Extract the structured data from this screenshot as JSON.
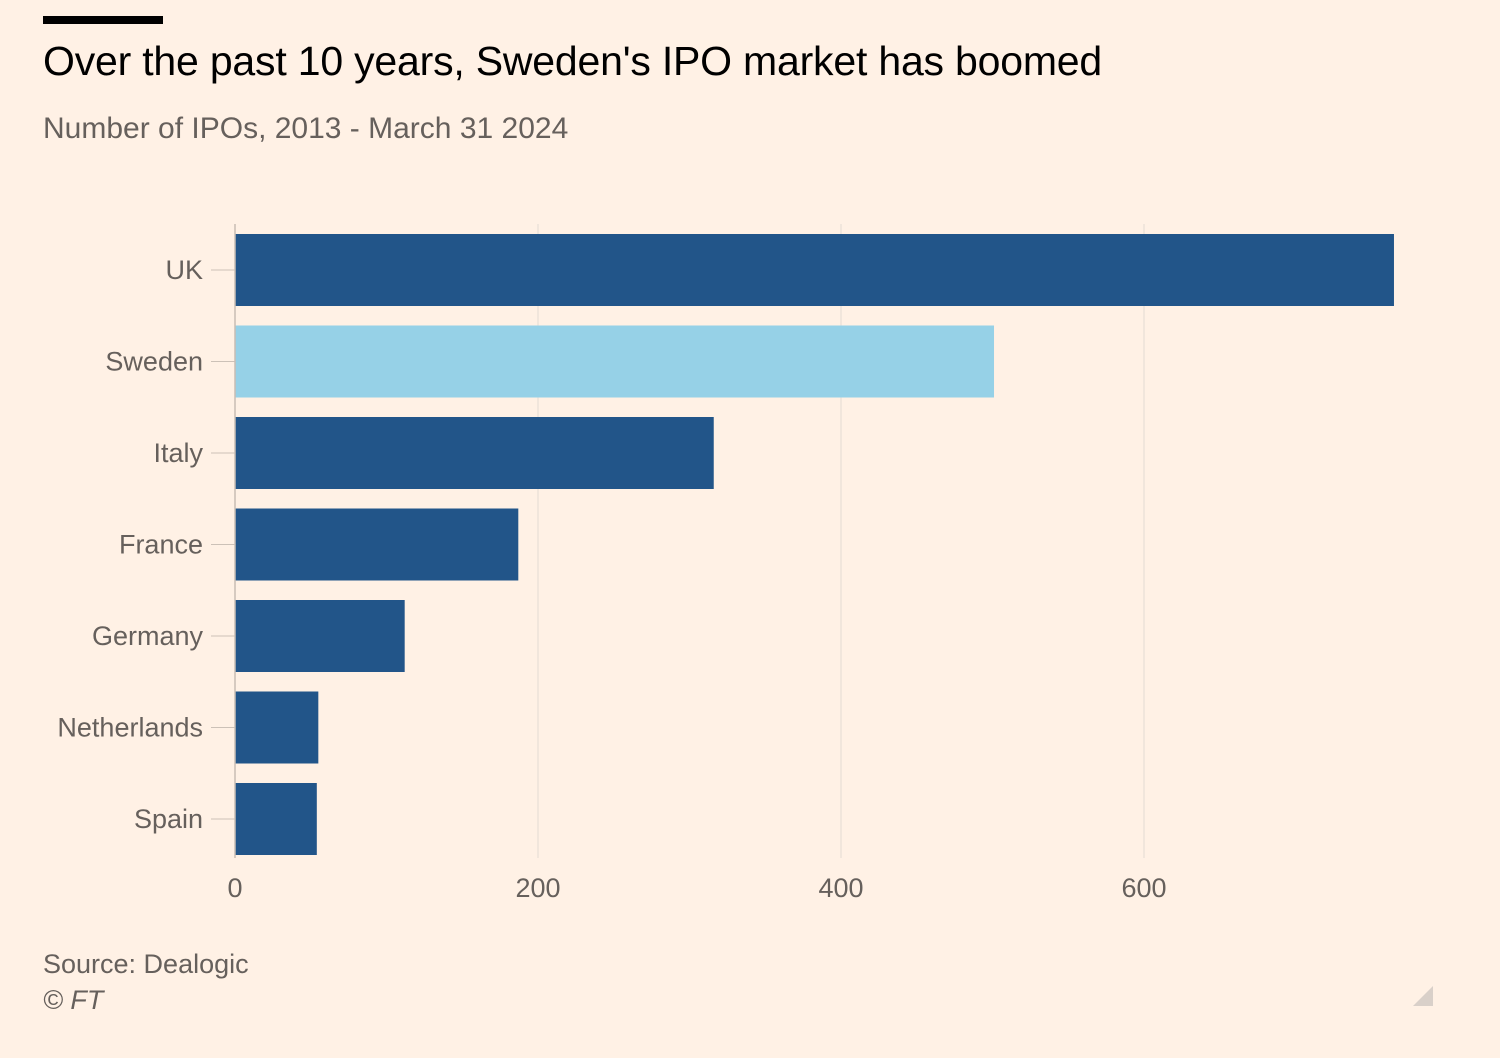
{
  "header": {
    "title": "Over the past 10 years, Sweden's IPO market has boomed",
    "subtitle": "Number of IPOs, 2013 - March 31 2024"
  },
  "footer": {
    "source": "Source: Dealogic",
    "credit": "© FT"
  },
  "colors": {
    "background": "#fff1e5",
    "bar": "#225589",
    "highlight": "#96d1e7",
    "grid": "#e3dbd4",
    "text": "#66605c",
    "title": "#000000"
  },
  "chart_data": {
    "type": "bar",
    "orientation": "horizontal",
    "categories": [
      "UK",
      "Sweden",
      "Italy",
      "France",
      "Germany",
      "Netherlands",
      "Spain"
    ],
    "values": [
      765,
      501,
      316,
      187,
      112,
      55,
      54
    ],
    "highlight": "Sweden",
    "xlim": [
      0,
      765
    ],
    "xticks": [
      0,
      200,
      400,
      600
    ],
    "grid": true,
    "legend": "none"
  }
}
